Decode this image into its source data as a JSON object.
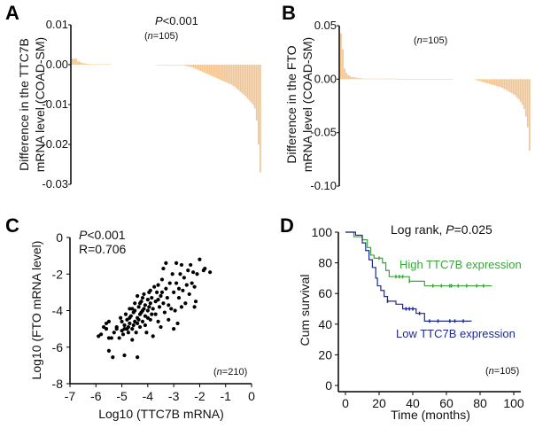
{
  "chart_data": [
    {
      "panel": "A",
      "type": "bar",
      "ylabel_line1": "Difference in the TTC7B",
      "ylabel_line2": "mRNA level (COAD-SM)",
      "annotation_p_italic": "P",
      "annotation_p_rest": "<0.001",
      "annotation_n_open": "(",
      "annotation_n_italic": "n",
      "annotation_n_rest": "=105)",
      "ylim": [
        -0.03,
        0.01
      ],
      "yticks": [
        "0.01",
        "0.00",
        "-0.01",
        "-0.02",
        "-0.03"
      ],
      "ytick_values": [
        0.01,
        0,
        -0.01,
        -0.02,
        -0.03
      ],
      "bar_color": "#f5c58f",
      "values": [
        0.0015,
        0.0015,
        0.0015,
        0.0008,
        0.0008,
        0.0005,
        0.0004,
        0.0003,
        0.0002,
        0.0002,
        0.0001,
        0.0001,
        0.0001,
        0.0001,
        0.0001,
        0.0001,
        0.0001,
        0.0001,
        0.0001,
        0.0001,
        0.0001,
        0.0001,
        0,
        0,
        0,
        0,
        0,
        0,
        0,
        0,
        0,
        0,
        0,
        0,
        0,
        0,
        0,
        0,
        0,
        0,
        0,
        0,
        0,
        0,
        0,
        0,
        0,
        -0.0001,
        -0.0001,
        -0.0001,
        -0.0001,
        -0.0001,
        -0.0001,
        -0.0001,
        -0.0001,
        -0.0001,
        -0.0001,
        -0.0001,
        -0.0001,
        -0.0001,
        -0.0001,
        -0.0001,
        -0.0002,
        -0.0003,
        -0.0004,
        -0.0005,
        -0.0006,
        -0.0008,
        -0.001,
        -0.0012,
        -0.0014,
        -0.0016,
        -0.0018,
        -0.002,
        -0.0022,
        -0.0024,
        -0.0026,
        -0.0028,
        -0.003,
        -0.0032,
        -0.0034,
        -0.0036,
        -0.0038,
        -0.004,
        -0.0042,
        -0.0044,
        -0.0046,
        -0.0048,
        -0.005,
        -0.0053,
        -0.0056,
        -0.006,
        -0.0064,
        -0.0068,
        -0.0072,
        -0.0076,
        -0.008,
        -0.0085,
        -0.009,
        -0.0095,
        -0.01,
        -0.011,
        -0.014,
        -0.02,
        -0.027
      ]
    },
    {
      "panel": "B",
      "type": "bar",
      "ylabel_line1": "Difference in the FTO",
      "ylabel_line2": "mRNA level (COAD-SM)",
      "annotation_n_open": "(",
      "annotation_n_italic": "n",
      "annotation_n_rest": "=105)",
      "ylim": [
        -0.1,
        0.05
      ],
      "yticks": [
        "0.05",
        "0.00",
        "-0.05",
        "-0.10"
      ],
      "ytick_values": [
        0.05,
        0,
        -0.05,
        -0.1
      ],
      "bar_color": "#f5c58f",
      "values": [
        0.043,
        0.028,
        0.01,
        0.006,
        0.004,
        0.003,
        0.002,
        0.002,
        0.0015,
        0.0015,
        0.001,
        0.001,
        0.0005,
        0.0005,
        0.0005,
        0.0005,
        0.0005,
        0.0005,
        0.0005,
        0.0005,
        0.0005,
        0.0005,
        0.0005,
        0.0005,
        0.0005,
        0.0005,
        0.0005,
        0.0005,
        0.0005,
        0.0005,
        0.0005,
        0.0005,
        0.0002,
        0.0002,
        0.0002,
        0.0002,
        0.0002,
        0.0002,
        0.0002,
        0.0002,
        0.0002,
        0.0002,
        0.0002,
        0.0002,
        0.0002,
        0.0002,
        0.0002,
        0.0002,
        0.0002,
        0.0002,
        0.0002,
        0.0002,
        0.0002,
        0.0002,
        0.0002,
        0.0002,
        0.0002,
        0.0002,
        0.0002,
        0.0002,
        0.0002,
        0.0002,
        0,
        0,
        0,
        0,
        0,
        0,
        0,
        0,
        0,
        0,
        0,
        0,
        -0.0005,
        -0.001,
        -0.0015,
        -0.002,
        -0.0025,
        -0.003,
        -0.0035,
        -0.004,
        -0.0045,
        -0.005,
        -0.0055,
        -0.006,
        -0.0065,
        -0.007,
        -0.0075,
        -0.008,
        -0.009,
        -0.01,
        -0.011,
        -0.012,
        -0.013,
        -0.014,
        -0.015,
        -0.017,
        -0.019,
        -0.021,
        -0.024,
        -0.028,
        -0.035,
        -0.045,
        -0.067
      ]
    },
    {
      "panel": "C",
      "type": "scatter",
      "xlabel": "Log10 (TTC7B mRNA)",
      "ylabel": "Log10 (FTO mRNA level)",
      "annotation_p_italic": "P",
      "annotation_p_rest": "<0.001",
      "annotation_r": "R=0.706",
      "annotation_n_open": "(",
      "annotation_n_italic": "n",
      "annotation_n_rest": "=210)",
      "xlim": [
        -7,
        0
      ],
      "ylim": [
        -8,
        0
      ],
      "xticks": [
        "-7",
        "-6",
        "-5",
        "-4",
        "-3",
        "-2",
        "-1",
        "0"
      ],
      "xtick_values": [
        -7,
        -6,
        -5,
        -4,
        -3,
        -2,
        -1,
        0
      ],
      "yticks": [
        "0",
        "-2",
        "-4",
        "-6",
        "-8"
      ],
      "ytick_values": [
        0,
        -2,
        -4,
        -6,
        -8
      ],
      "point_color": "#000000",
      "points": [
        [
          -5.9,
          -5.4
        ],
        [
          -5.8,
          -5.3
        ],
        [
          -5.7,
          -4.9
        ],
        [
          -5.6,
          -4.7
        ],
        [
          -5.6,
          -5.0
        ],
        [
          -5.5,
          -4.6
        ],
        [
          -5.5,
          -5.5
        ],
        [
          -5.4,
          -5.5
        ],
        [
          -5.5,
          -6.2
        ],
        [
          -5.35,
          -6.55
        ],
        [
          -4.9,
          -6.45
        ],
        [
          -4.4,
          -6.55
        ],
        [
          -5.3,
          -5.2
        ],
        [
          -5.2,
          -5.0
        ],
        [
          -5.1,
          -5.5
        ],
        [
          -5.05,
          -4.4
        ],
        [
          -5.0,
          -4.6
        ],
        [
          -5.0,
          -5.1
        ],
        [
          -4.95,
          -5.3
        ],
        [
          -4.9,
          -4.8
        ],
        [
          -4.85,
          -4.2
        ],
        [
          -4.8,
          -4.5
        ],
        [
          -4.8,
          -5.0
        ],
        [
          -4.75,
          -5.2
        ],
        [
          -4.7,
          -4.7
        ],
        [
          -4.7,
          -3.9
        ],
        [
          -4.65,
          -4.3
        ],
        [
          -4.6,
          -5.0
        ],
        [
          -4.6,
          -5.6
        ],
        [
          -4.55,
          -4.1
        ],
        [
          -4.5,
          -4.6
        ],
        [
          -4.5,
          -3.6
        ],
        [
          -4.45,
          -5.2
        ],
        [
          -4.4,
          -4.4
        ],
        [
          -4.4,
          -3.2
        ],
        [
          -4.35,
          -3.8
        ],
        [
          -4.3,
          -4.9
        ],
        [
          -4.3,
          -4.2
        ],
        [
          -4.25,
          -3.5
        ],
        [
          -4.2,
          -4.0
        ],
        [
          -4.2,
          -4.6
        ],
        [
          -4.15,
          -3.1
        ],
        [
          -4.1,
          -3.7
        ],
        [
          -4.1,
          -4.3
        ],
        [
          -4.05,
          -5.2
        ],
        [
          -4.0,
          -3.4
        ],
        [
          -4.0,
          -4.0
        ],
        [
          -3.95,
          -3.0
        ],
        [
          -3.9,
          -3.6
        ],
        [
          -3.9,
          -4.5
        ],
        [
          -3.85,
          -3.3
        ],
        [
          -3.8,
          -5.4
        ],
        [
          -3.8,
          -3.9
        ],
        [
          -3.75,
          -2.7
        ],
        [
          -3.7,
          -3.5
        ],
        [
          -3.7,
          -4.2
        ],
        [
          -3.65,
          -3.0
        ],
        [
          -3.6,
          -4.6
        ],
        [
          -3.6,
          -2.6
        ],
        [
          -3.55,
          -3.8
        ],
        [
          -3.5,
          -3.2
        ],
        [
          -3.5,
          -4.9
        ],
        [
          -3.45,
          -2.3
        ],
        [
          -3.4,
          -3.6
        ],
        [
          -3.4,
          -1.7
        ],
        [
          -3.35,
          -4.1
        ],
        [
          -3.3,
          -2.8
        ],
        [
          -3.3,
          -1.4
        ],
        [
          -3.25,
          -3.3
        ],
        [
          -3.2,
          -4.5
        ],
        [
          -3.15,
          -2.5
        ],
        [
          -3.1,
          -3.9
        ],
        [
          -3.05,
          -2.0
        ],
        [
          -3.0,
          -3.0
        ],
        [
          -3.0,
          -5.0
        ],
        [
          -2.95,
          -4.0
        ],
        [
          -2.9,
          -1.4
        ],
        [
          -2.9,
          -2.5
        ],
        [
          -2.85,
          -4.7
        ],
        [
          -2.8,
          -3.3
        ],
        [
          -2.75,
          -2.0
        ],
        [
          -2.7,
          -3.8
        ],
        [
          -2.7,
          -1.5
        ],
        [
          -2.65,
          -2.9
        ],
        [
          -2.6,
          -2.2
        ],
        [
          -2.55,
          -3.6
        ],
        [
          -2.5,
          -2.6
        ],
        [
          -2.45,
          -1.8
        ],
        [
          -2.4,
          -3.1
        ],
        [
          -2.35,
          -1.5
        ],
        [
          -2.3,
          -2.5
        ],
        [
          -2.25,
          -1.9
        ],
        [
          -2.2,
          -3.8
        ],
        [
          -2.2,
          -2.7
        ],
        [
          -2.15,
          -3.5
        ],
        [
          -2.1,
          -2.0
        ],
        [
          -2.0,
          -1.2
        ],
        [
          -1.85,
          -1.8
        ],
        [
          -1.8,
          -1.7
        ],
        [
          -1.6,
          -1.9
        ],
        [
          -4.6,
          -3.9
        ],
        [
          -4.4,
          -4.7
        ],
        [
          -4.2,
          -3.3
        ],
        [
          -4.0,
          -4.4
        ],
        [
          -3.9,
          -2.9
        ],
        [
          -4.5,
          -4.0
        ],
        [
          -4.3,
          -3.6
        ],
        [
          -4.1,
          -4.8
        ],
        [
          -4.7,
          -4.4
        ],
        [
          -4.9,
          -5.0
        ],
        [
          -5.2,
          -4.9
        ],
        [
          -4.55,
          -4.8
        ],
        [
          -4.25,
          -4.1
        ],
        [
          -3.95,
          -3.8
        ],
        [
          -3.6,
          -3.4
        ],
        [
          -3.2,
          -3.7
        ],
        [
          -2.8,
          -2.8
        ],
        [
          -4.75,
          -4.9
        ],
        [
          -4.35,
          -4.5
        ],
        [
          -3.85,
          -4.2
        ],
        [
          -4.15,
          -3.9
        ],
        [
          -3.45,
          -3.0
        ]
      ]
    },
    {
      "panel": "D",
      "type": "line",
      "subtype": "kaplan-meier",
      "annotation_prefix": "Log rank, ",
      "annotation_p_italic": "P",
      "annotation_p_rest": "=0.025",
      "annotation_n_open": "(",
      "annotation_n_italic": "n",
      "annotation_n_rest": "=105)",
      "xlabel": "Time (months)",
      "ylabel": "Cum survival",
      "xlim": [
        0,
        100
      ],
      "ylim": [
        0,
        100
      ],
      "xticks": [
        "0",
        "20",
        "40",
        "60",
        "80",
        "100"
      ],
      "xtick_values": [
        0,
        20,
        40,
        60,
        80,
        100
      ],
      "yticks": [
        "100",
        "80",
        "60",
        "40",
        "20",
        "0"
      ],
      "ytick_values": [
        100,
        80,
        60,
        40,
        20,
        0
      ],
      "series": [
        {
          "name": "High TTC7B expression",
          "color": "#3aa53a",
          "steps": [
            [
              0,
              100
            ],
            [
              5,
              97
            ],
            [
              10,
              95
            ],
            [
              13,
              90
            ],
            [
              15,
              85
            ],
            [
              17,
              83
            ],
            [
              22,
              80
            ],
            [
              24,
              75
            ],
            [
              26,
              71
            ],
            [
              35,
              71
            ],
            [
              38,
              68
            ],
            [
              44,
              68
            ],
            [
              47,
              65
            ],
            [
              87,
              65
            ]
          ],
          "censored": [
            20,
            30,
            32,
            34,
            38,
            52,
            57,
            62,
            63,
            67,
            72,
            78,
            82
          ]
        },
        {
          "name": "Low TTC7B expression",
          "color": "#1f2a8c",
          "steps": [
            [
              0,
              100
            ],
            [
              6,
              98
            ],
            [
              10,
              93
            ],
            [
              12,
              88
            ],
            [
              14,
              82
            ],
            [
              16,
              77
            ],
            [
              18,
              70
            ],
            [
              19,
              65
            ],
            [
              21,
              62
            ],
            [
              23,
              58
            ],
            [
              25,
              55
            ],
            [
              30,
              53
            ],
            [
              34,
              50
            ],
            [
              42,
              47
            ],
            [
              47,
              42
            ],
            [
              75,
              42
            ]
          ],
          "censored": [
            25,
            36,
            38,
            40,
            44,
            50,
            55,
            62,
            65,
            70
          ]
        }
      ]
    }
  ]
}
